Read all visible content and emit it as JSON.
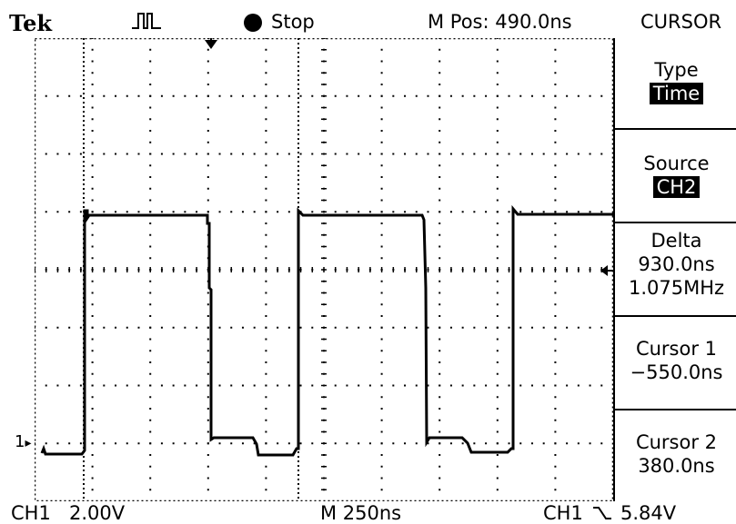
{
  "header": {
    "brand": "Tek",
    "acquire_icon": "pulse-waveform-icon",
    "run_state": "Stop",
    "m_pos": "M Pos: 490.0ns",
    "menu_title": "CURSOR"
  },
  "side_menu": {
    "type_label": "Type",
    "type_value": "Time",
    "source_label": "Source",
    "source_value": "CH2",
    "delta_label": "Delta",
    "delta_time": "930.0ns",
    "delta_freq": "1.075MHz",
    "cursor1_label": "Cursor 1",
    "cursor1_value": "−550.0ns",
    "cursor2_label": "Cursor 2",
    "cursor2_value": "380.0ns"
  },
  "footer": {
    "ch1": "CH1",
    "volts_div": "2.00V",
    "timebase": "M 250ns",
    "trig_source": "CH1",
    "trig_slope_icon": "falling-edge-icon",
    "trig_level": "5.84V"
  },
  "channel_marker": "1",
  "colors": {
    "trace": "#000000",
    "background": "#ffffff"
  }
}
